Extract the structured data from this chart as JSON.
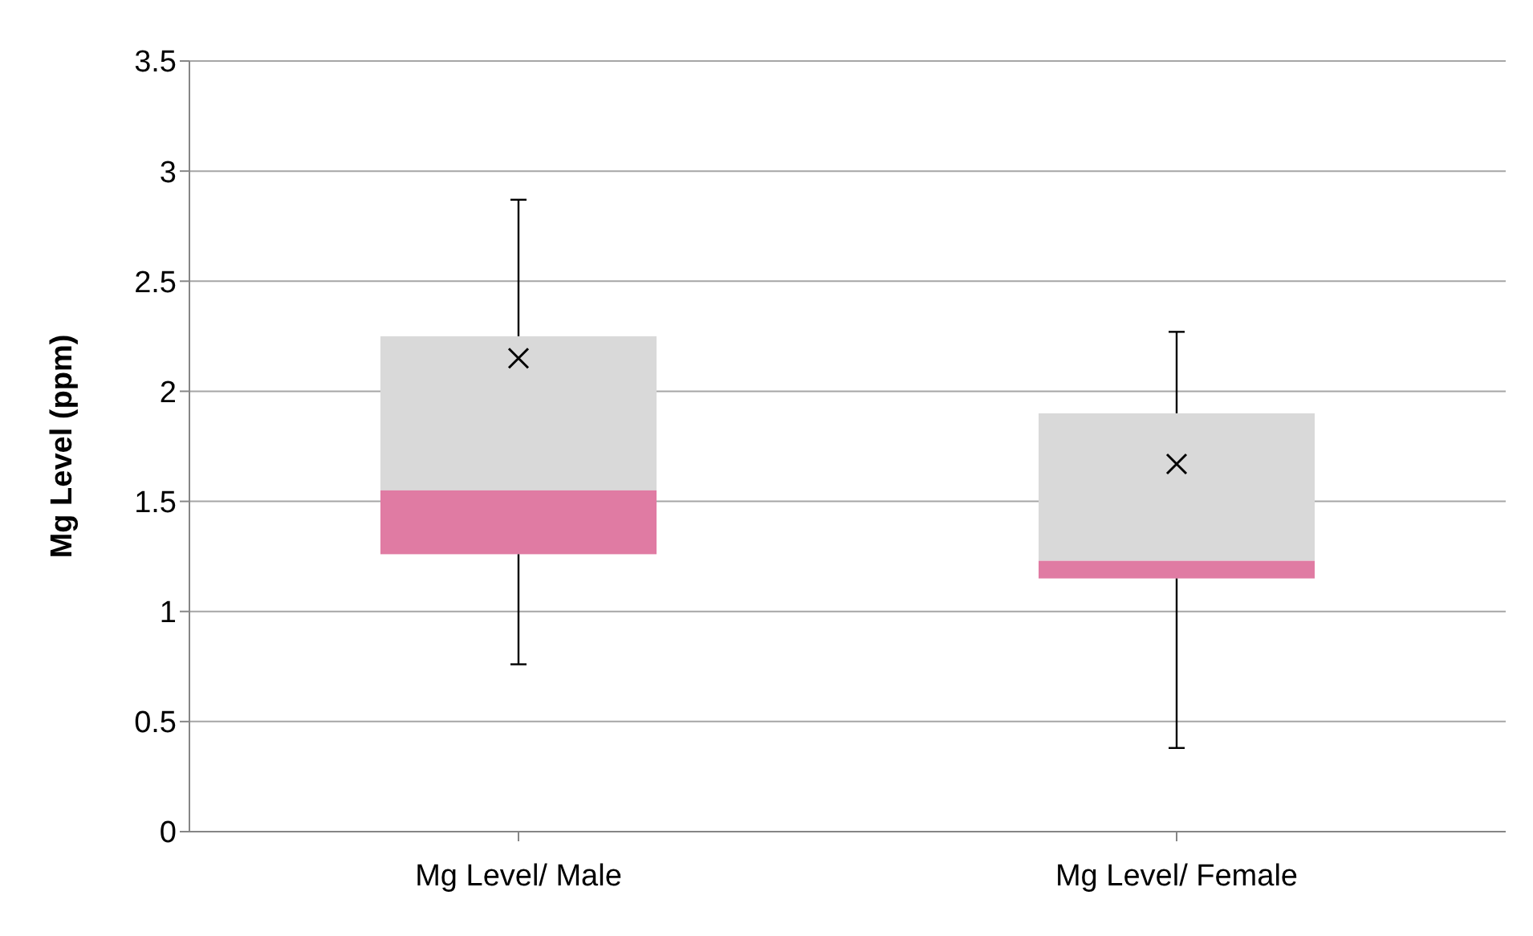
{
  "chart_data": {
    "type": "box",
    "categories": [
      "Mg Level/ Male",
      "Mg Level/ Female"
    ],
    "boxes": [
      {
        "low": 0.76,
        "q1": 1.26,
        "median": 1.55,
        "q3": 2.25,
        "high": 2.87,
        "mean": 2.15
      },
      {
        "low": 0.38,
        "q1": 1.15,
        "median": 1.23,
        "q3": 1.9,
        "high": 2.27,
        "mean": 1.67
      }
    ],
    "colors": [
      [
        "#e07ba3",
        "#d9d9d9"
      ],
      [
        "#e07ba3",
        "#d9d9d9"
      ]
    ],
    "ylabel": "Mg Level (ppm)",
    "ylim": [
      0,
      3.5
    ],
    "yticks": [
      0,
      0.5,
      1,
      1.5,
      2,
      2.5,
      3,
      3.5
    ],
    "grid": "y"
  }
}
